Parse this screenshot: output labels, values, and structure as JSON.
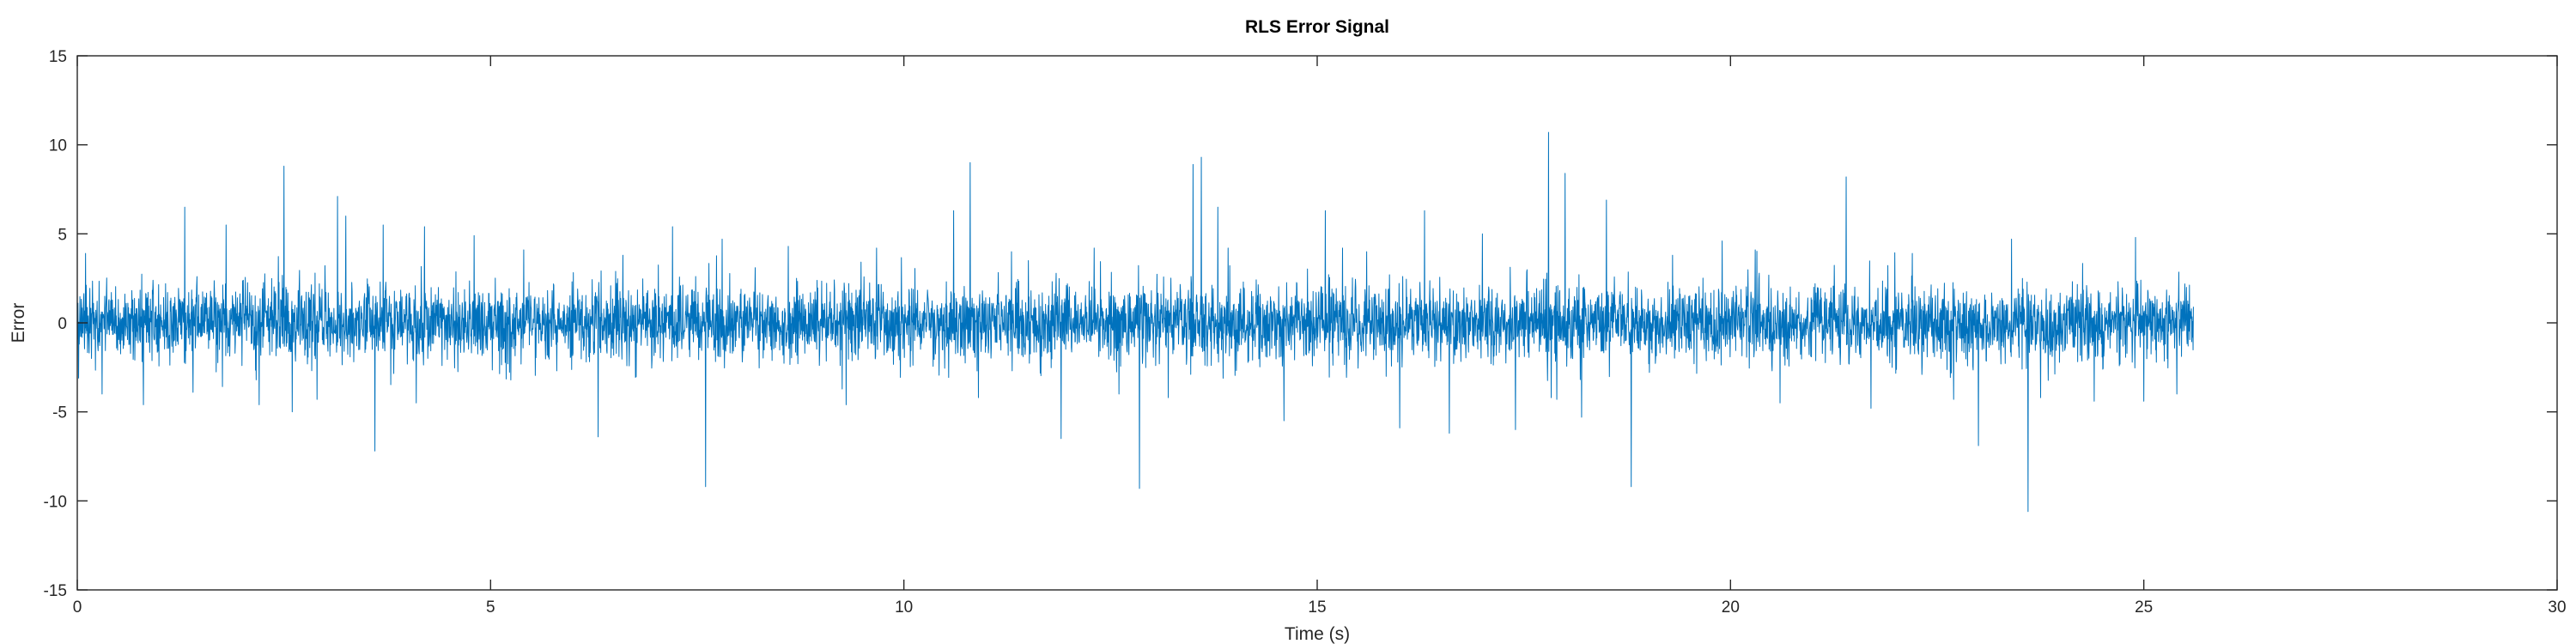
{
  "chart_data": {
    "type": "line",
    "title": "RLS Error Signal",
    "xlabel": "Time (s)",
    "ylabel": "Error",
    "xlim": [
      0,
      30
    ],
    "ylim": [
      -15,
      15
    ],
    "xticks": [
      0,
      5,
      10,
      15,
      20,
      25,
      30
    ],
    "yticks": [
      -15,
      -10,
      -5,
      0,
      5,
      10,
      15
    ],
    "grid": false,
    "series_color": "#0072BD",
    "series": [
      {
        "x_start": 0,
        "x_end": 25.6,
        "typical_range": [
          -2.5,
          2.5
        ],
        "spikes": [
          {
            "x": 0.1,
            "y": 3.9
          },
          {
            "x": 0.3,
            "y": -4.0
          },
          {
            "x": 0.8,
            "y": -4.6
          },
          {
            "x": 1.3,
            "y": 6.5
          },
          {
            "x": 1.4,
            "y": -3.9
          },
          {
            "x": 1.8,
            "y": 5.5
          },
          {
            "x": 2.2,
            "y": -4.6
          },
          {
            "x": 2.5,
            "y": 8.8
          },
          {
            "x": 2.6,
            "y": -5.0
          },
          {
            "x": 2.9,
            "y": -4.3
          },
          {
            "x": 3.15,
            "y": 7.1
          },
          {
            "x": 3.25,
            "y": 6.0
          },
          {
            "x": 3.6,
            "y": -7.2
          },
          {
            "x": 3.7,
            "y": 5.5
          },
          {
            "x": 4.1,
            "y": -4.5
          },
          {
            "x": 4.2,
            "y": 5.4
          },
          {
            "x": 4.8,
            "y": 4.9
          },
          {
            "x": 5.4,
            "y": 4.1
          },
          {
            "x": 6.3,
            "y": -6.4
          },
          {
            "x": 6.6,
            "y": 3.8
          },
          {
            "x": 7.2,
            "y": 5.4
          },
          {
            "x": 7.6,
            "y": -9.2
          },
          {
            "x": 7.8,
            "y": 4.7
          },
          {
            "x": 8.6,
            "y": 4.3
          },
          {
            "x": 9.3,
            "y": -4.6
          },
          {
            "x": 10.6,
            "y": 6.3
          },
          {
            "x": 10.8,
            "y": 9.0
          },
          {
            "x": 10.9,
            "y": -4.2
          },
          {
            "x": 11.3,
            "y": 4.0
          },
          {
            "x": 11.9,
            "y": -6.5
          },
          {
            "x": 12.3,
            "y": 4.2
          },
          {
            "x": 12.6,
            "y": -4.0
          },
          {
            "x": 12.85,
            "y": -9.3
          },
          {
            "x": 13.2,
            "y": -4.2
          },
          {
            "x": 13.5,
            "y": 8.9
          },
          {
            "x": 13.6,
            "y": 9.3
          },
          {
            "x": 13.8,
            "y": 6.5
          },
          {
            "x": 14.6,
            "y": -5.5
          },
          {
            "x": 15.1,
            "y": 6.3
          },
          {
            "x": 15.6,
            "y": 4.0
          },
          {
            "x": 16.0,
            "y": -5.9
          },
          {
            "x": 16.3,
            "y": 6.3
          },
          {
            "x": 16.6,
            "y": -6.2
          },
          {
            "x": 17.0,
            "y": 5.0
          },
          {
            "x": 17.4,
            "y": -6.0
          },
          {
            "x": 17.8,
            "y": 10.7
          },
          {
            "x": 17.9,
            "y": -4.3
          },
          {
            "x": 18.0,
            "y": 8.4
          },
          {
            "x": 18.2,
            "y": -5.3
          },
          {
            "x": 18.5,
            "y": 6.9
          },
          {
            "x": 18.8,
            "y": -9.2
          },
          {
            "x": 19.3,
            "y": 3.8
          },
          {
            "x": 19.9,
            "y": 4.6
          },
          {
            "x": 20.3,
            "y": 4.1
          },
          {
            "x": 20.6,
            "y": -4.5
          },
          {
            "x": 21.4,
            "y": 8.2
          },
          {
            "x": 21.7,
            "y": -4.8
          },
          {
            "x": 22.2,
            "y": 3.9
          },
          {
            "x": 22.7,
            "y": -4.3
          },
          {
            "x": 23.0,
            "y": -6.9
          },
          {
            "x": 23.4,
            "y": 4.7
          },
          {
            "x": 23.6,
            "y": -10.6
          },
          {
            "x": 23.75,
            "y": -4.2
          },
          {
            "x": 24.4,
            "y": -4.4
          },
          {
            "x": 24.9,
            "y": 4.8
          },
          {
            "x": 25.0,
            "y": -4.4
          },
          {
            "x": 25.4,
            "y": -4.0
          }
        ]
      }
    ]
  }
}
